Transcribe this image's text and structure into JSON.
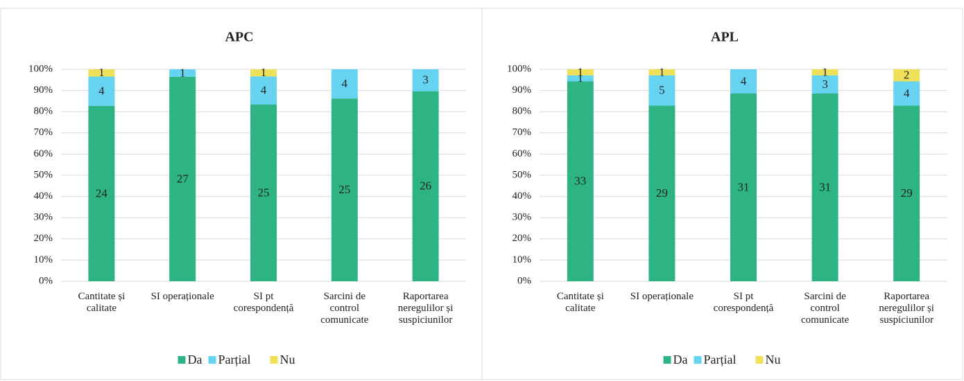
{
  "chart_data": [
    {
      "type": "bar",
      "stacking": "percent",
      "title": "APC",
      "categories": [
        "Cantitate și calitate",
        "SI operaționale",
        "SI pt corespondență",
        "Sarcini de control comunicate",
        "Raportarea neregulilor și suspiciunilor"
      ],
      "series": [
        {
          "name": "Da",
          "color": "#2db482",
          "values": [
            24,
            27,
            25,
            25,
            26
          ]
        },
        {
          "name": "Parțial",
          "color": "#66d4f0",
          "values": [
            4,
            1,
            4,
            4,
            3
          ]
        },
        {
          "name": "Nu",
          "color": "#efe05a",
          "values": [
            1,
            0,
            1,
            0,
            0
          ]
        }
      ],
      "ylim": [
        0,
        100
      ],
      "yticks": [
        {
          "value": 0,
          "label": "0%"
        },
        {
          "value": 10,
          "label": "10%"
        },
        {
          "value": 20,
          "label": "20%"
        },
        {
          "value": 30,
          "label": "30%"
        },
        {
          "value": 40,
          "label": "40%"
        },
        {
          "value": 50,
          "label": "50%"
        },
        {
          "value": 60,
          "label": "60%"
        },
        {
          "value": 70,
          "label": "70%"
        },
        {
          "value": 80,
          "label": "80%"
        },
        {
          "value": 90,
          "label": "90%"
        },
        {
          "value": 100,
          "label": "100%"
        }
      ],
      "grid": true,
      "legend": "bottom"
    },
    {
      "type": "bar",
      "stacking": "percent",
      "title": "APL",
      "categories": [
        "Cantitate și calitate",
        "SI operaționale",
        "SI pt corespondență",
        "Sarcini de control comunicate",
        "Raportarea neregulilor și suspiciunilor"
      ],
      "series": [
        {
          "name": "Da",
          "color": "#2db482",
          "values": [
            33,
            29,
            31,
            31,
            29
          ]
        },
        {
          "name": "Parțial",
          "color": "#66d4f0",
          "values": [
            1,
            5,
            4,
            3,
            4
          ]
        },
        {
          "name": "Nu",
          "color": "#efe05a",
          "values": [
            1,
            1,
            0,
            1,
            2
          ]
        }
      ],
      "ylim": [
        0,
        100
      ],
      "yticks": [
        {
          "value": 0,
          "label": "0%"
        },
        {
          "value": 10,
          "label": "10%"
        },
        {
          "value": 20,
          "label": "20%"
        },
        {
          "value": 30,
          "label": "30%"
        },
        {
          "value": 40,
          "label": "40%"
        },
        {
          "value": 50,
          "label": "50%"
        },
        {
          "value": 60,
          "label": "60%"
        },
        {
          "value": 70,
          "label": "70%"
        },
        {
          "value": 80,
          "label": "80%"
        },
        {
          "value": 90,
          "label": "90%"
        },
        {
          "value": 100,
          "label": "100%"
        }
      ],
      "grid": true,
      "legend": "bottom"
    }
  ]
}
